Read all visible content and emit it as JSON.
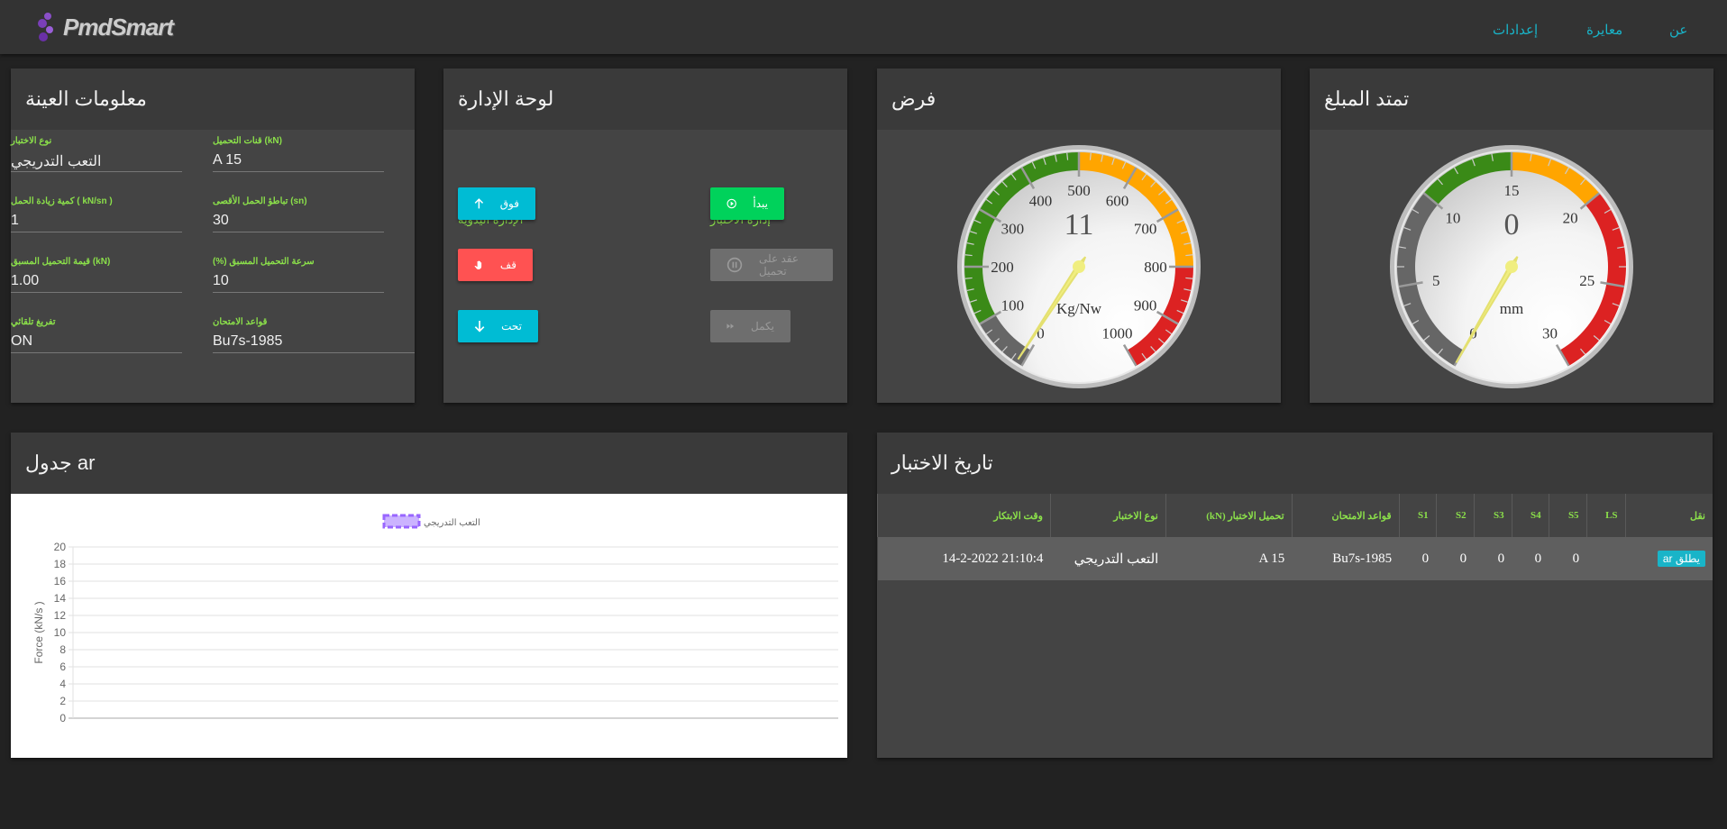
{
  "nav": {
    "logo": "PmdSmart",
    "links": [
      "إعدادات",
      "معايرة",
      "عن"
    ]
  },
  "sample": {
    "title": "معلومات العينة",
    "fields": [
      {
        "label": "نوع الاختبار",
        "value": "التعب التدريجي"
      },
      {
        "label": "قنات التحميل (kN)",
        "value": "A 15"
      },
      {
        "label": "كمية زيادة الحمل ( kN/sn )",
        "value": "1"
      },
      {
        "label": "تباطؤ الحمل الأقصى (sn)",
        "value": "30"
      },
      {
        "label": "قيمة التحميل المسبق (kN)",
        "value": "1.00"
      },
      {
        "label": "(%) سرعة التحميل المسبق",
        "value": "10"
      },
      {
        "label": "تفريغ تلقائي",
        "value": "ON"
      },
      {
        "label": "قواعد الامتحان",
        "value": "Bu7s-1985"
      }
    ]
  },
  "control": {
    "title": "لوحة الإدارة",
    "manual_title": "الإدارة اليدوية",
    "test_title": "إدارة الاختبار",
    "up": "فوق",
    "stop": "قف",
    "down": "تحت",
    "start": "يبدأ",
    "hold": "عقد على تحميل",
    "resume": "يكمل",
    "colors": {
      "cyan": "#00bcd4",
      "red": "#ff5252",
      "green": "#00d25b",
      "disabled": "#6e6e6e"
    }
  },
  "force": {
    "title": "فرض",
    "min": 0,
    "max": 1000,
    "value": 11,
    "display": "11",
    "unit": "Kg/Nw",
    "major": 100,
    "minor": 20,
    "bands": [
      {
        "from": 0,
        "to": 100,
        "color": "#666666"
      },
      {
        "from": 100,
        "to": 500,
        "color": "#3a8a17"
      },
      {
        "from": 500,
        "to": 800,
        "color": "#ffa500"
      },
      {
        "from": 800,
        "to": 1000,
        "color": "#dc2222"
      }
    ]
  },
  "extension": {
    "title": "تمتد المبلغ",
    "min": 0,
    "max": 30,
    "value": 0,
    "display": "0",
    "unit": "mm",
    "major": 5,
    "minor": 1,
    "bands": [
      {
        "from": 0,
        "to": 10,
        "color": "#666666"
      },
      {
        "from": 10,
        "to": 15,
        "color": "#3a8a17"
      },
      {
        "from": 15,
        "to": 20,
        "color": "#ffa500"
      },
      {
        "from": 20,
        "to": 30,
        "color": "#dc2222"
      }
    ]
  },
  "chart": {
    "title": "جدول ar"
  },
  "chart_data": {
    "type": "line",
    "title": "",
    "xlabel": "",
    "ylabel": "Force (kN/s )",
    "ylim": [
      0,
      20
    ],
    "yticks": [
      0,
      2,
      4,
      6,
      8,
      10,
      12,
      14,
      16,
      18,
      20
    ],
    "grid": true,
    "legend": "top",
    "series": [
      {
        "name": "التعب التدريجي",
        "color": "#9966ff",
        "values": []
      }
    ]
  },
  "history": {
    "title": "تاريخ الاختبار",
    "columns": [
      "نقل",
      "LS",
      "S5",
      "S4",
      "S3",
      "S2",
      "S1",
      "قواعد الامتحان",
      "تحميل الاختبار (kN)",
      "نوع الاختبار",
      "وقت الابتكار"
    ],
    "rows": [
      {
        "action": "يطلق ar",
        "cells": [
          "",
          "0",
          "0",
          "0",
          "0",
          "0",
          "Bu7s-1985",
          "A 15",
          "التعب التدريجي",
          "14-2-2022 21:10:4"
        ]
      }
    ]
  }
}
